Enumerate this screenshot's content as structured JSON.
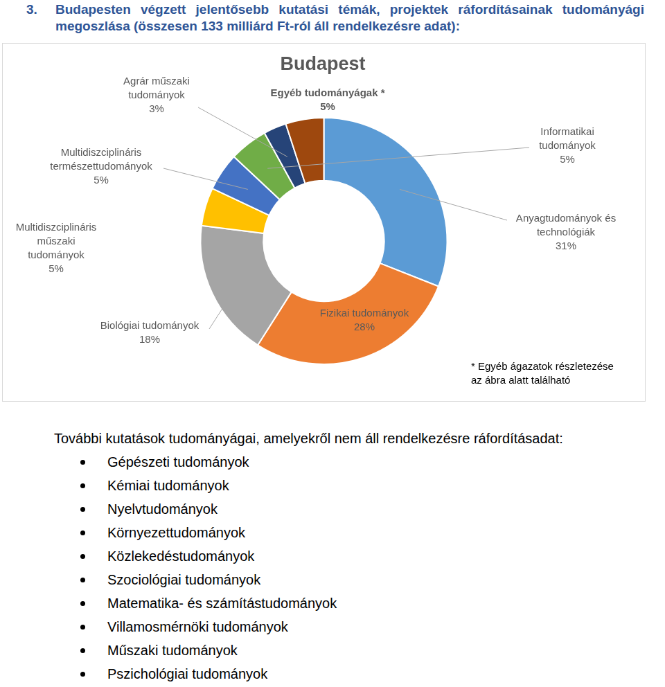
{
  "heading": {
    "number": "3.",
    "text": "Budapesten végzett jelentősebb kutatási témák, projektek ráfordításainak tudományági megoszlása (összesen 133 milliárd Ft-ról áll rendelkezésre adat):"
  },
  "chart_data": {
    "type": "doughnut",
    "title": "Budapest",
    "categories": [
      "Anyagtudományok és technológiák",
      "Fizikai tudományok",
      "Biológiai tudományok",
      "Multidiszciplináris műszaki tudományok",
      "Multidiszciplináris természettudományok",
      "Informatikai tudományok",
      "Agrár műszaki tudományok",
      "Egyéb tudományágak *"
    ],
    "values": [
      31,
      28,
      18,
      5,
      5,
      5,
      3,
      5
    ],
    "value_labels": [
      "31%",
      "28%",
      "18%",
      "5%",
      "5%",
      "5%",
      "3%",
      "5%"
    ],
    "colors": [
      "#5B9BD5",
      "#ED7D31",
      "#A5A5A5",
      "#FFC000",
      "#4472C4",
      "#70AD47",
      "#264478",
      "#9E480E"
    ],
    "data_labels": true,
    "annotations": [
      "* Egyéb ágazatok részletezése",
      "az ábra alatt található"
    ]
  },
  "list": {
    "title": "További kutatások tudományágai, amelyekről nem áll rendelkezésre ráfordításadat:",
    "items": [
      "Gépészeti tudományok",
      "Kémiai tudományok",
      "Nyelvtudományok",
      "Környezettudományok",
      "Közlekedéstudományok",
      "Szociológiai tudományok",
      "Matematika- és számítástudományok",
      "Villamosmérnöki tudományok",
      "Műszaki tudományok",
      "Pszichológiai tudományok"
    ]
  }
}
